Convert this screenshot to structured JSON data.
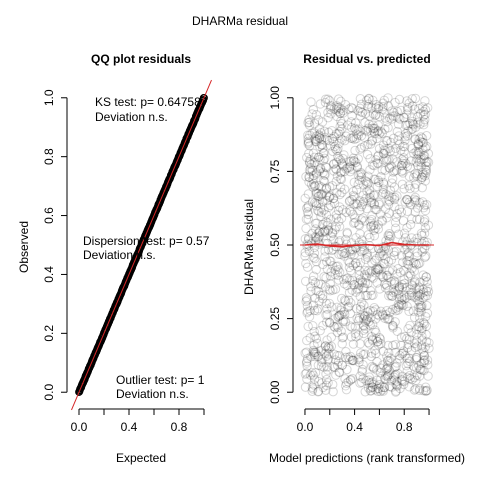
{
  "main_title": "DHARMa residual",
  "colors": {
    "points": "#000000",
    "line": "#d62728",
    "axis": "#000000"
  },
  "chart_data": [
    {
      "type": "scatter",
      "title": "QQ plot residuals",
      "xlabel": "Expected",
      "ylabel": "Observed",
      "xlim": [
        -0.04,
        1.04
      ],
      "ylim": [
        -0.04,
        1.04
      ],
      "x_ticks": [
        0.0,
        0.4,
        0.8
      ],
      "x_tick_labels": [
        "0.0",
        "0.4",
        "0.8"
      ],
      "y_ticks": [
        0.0,
        0.2,
        0.4,
        0.6,
        0.8,
        1.0
      ],
      "y_tick_labels": [
        "0.0",
        "0.2",
        "0.4",
        "0.6",
        "0.8",
        "1.0"
      ],
      "reference_line": {
        "intercept": 0,
        "slope": 1
      },
      "series": [
        {
          "x_range": [
            0,
            1
          ],
          "y_range": [
            0,
            1
          ],
          "relation": "y = x"
        }
      ],
      "annotations": [
        {
          "lines": [
            "KS test: p= 0.64758",
            "Deviation  n.s."
          ]
        },
        {
          "lines": [
            "Dispersion test: p= 0.57",
            "Deviation  n.s."
          ]
        },
        {
          "lines": [
            "Outlier test: p= 1",
            "Deviation  n.s."
          ]
        }
      ]
    },
    {
      "type": "scatter",
      "title": "Residual vs. predicted",
      "xlabel": "Model predictions (rank transformed)",
      "ylabel": "DHARMa residual",
      "xlim": [
        -0.04,
        1.04
      ],
      "ylim": [
        -0.04,
        1.04
      ],
      "x_ticks": [
        0.0,
        0.4,
        0.8
      ],
      "x_tick_labels": [
        "0.0",
        "0.4",
        "0.8"
      ],
      "y_ticks": [
        0.0,
        0.25,
        0.5,
        0.75,
        1.0
      ],
      "y_tick_labels": [
        "0.00",
        "0.25",
        "0.50",
        "0.75",
        "1.00"
      ],
      "series": [
        {
          "x_range": [
            0,
            1
          ],
          "y_range": [
            0,
            1
          ],
          "distribution": "uniform"
        }
      ],
      "reference_lines": [
        {
          "y": 0.5
        }
      ],
      "quantile_curve": {
        "x": [
          0,
          0.1,
          0.2,
          0.3,
          0.4,
          0.5,
          0.6,
          0.7,
          0.8,
          0.9,
          1.0
        ],
        "y": [
          0.5,
          0.503,
          0.497,
          0.494,
          0.499,
          0.501,
          0.498,
          0.508,
          0.502,
          0.5,
          0.5
        ]
      }
    }
  ]
}
